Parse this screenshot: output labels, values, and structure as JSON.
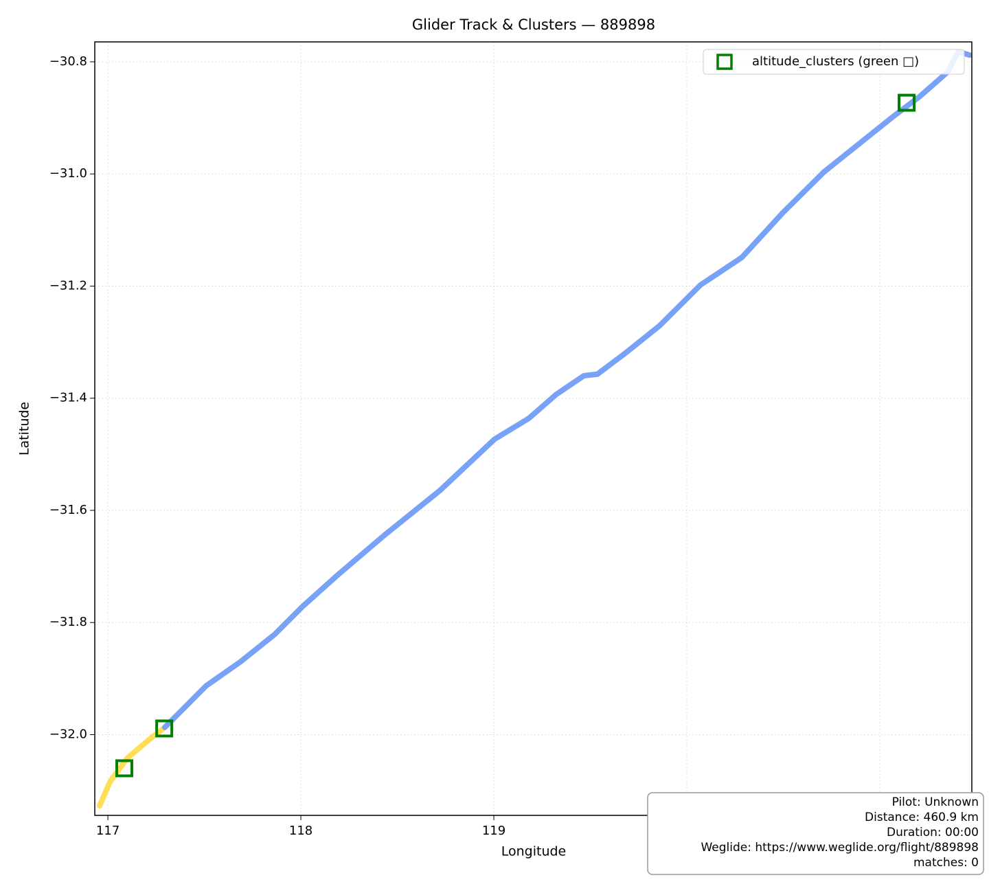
{
  "chart_data": {
    "type": "line",
    "title": "Glider Track & Clusters — 889898",
    "xlabel": "Longitude",
    "ylabel": "Latitude",
    "xlim": [
      116.932,
      121.477
    ],
    "ylim": [
      -32.144,
      -30.7645
    ],
    "xticks": [
      117,
      118,
      119,
      120,
      121
    ],
    "yticks": [
      {
        "value": -30.8,
        "label": "−30.8"
      },
      {
        "value": -31.0,
        "label": "−31.0"
      },
      {
        "value": -31.2,
        "label": "−31.2"
      },
      {
        "value": -31.4,
        "label": "−31.4"
      },
      {
        "value": -31.6,
        "label": "−31.6"
      },
      {
        "value": -31.8,
        "label": "−31.8"
      },
      {
        "value": -32.0,
        "label": "−32.0"
      }
    ],
    "grid": true,
    "legend": "upper right",
    "series": [
      {
        "color": "#ffdd55",
        "x": [
          116.957,
          117.011,
          117.1,
          117.206,
          117.295
        ],
        "values": [
          -32.127,
          -32.084,
          -32.042,
          -32.011,
          -31.987
        ]
      },
      {
        "color": "#77a2f7",
        "x": [
          117.295,
          117.402,
          117.509,
          117.687,
          117.865,
          118.007,
          118.185,
          118.434,
          118.719,
          119.004,
          119.181,
          119.324,
          119.466,
          119.537,
          119.68,
          119.858,
          120.071,
          120.285,
          120.498,
          120.712,
          120.89,
          121.068,
          121.21,
          121.352,
          121.406,
          121.466
        ],
        "values": [
          -31.987,
          -31.95,
          -31.913,
          -31.87,
          -31.821,
          -31.772,
          -31.717,
          -31.644,
          -31.565,
          -31.473,
          -31.436,
          -31.393,
          -31.36,
          -31.357,
          -31.32,
          -31.271,
          -31.198,
          -31.149,
          -31.069,
          -30.996,
          -30.947,
          -30.898,
          -30.861,
          -30.818,
          -30.782,
          -30.788
        ]
      },
      {
        "name": "altitude_clusters (green □)",
        "color": "green",
        "marker": "square",
        "x": [
          117.085,
          117.292,
          121.139
        ],
        "values": [
          -32.06,
          -31.989,
          -30.873
        ]
      }
    ],
    "annotations": [
      "Pilot: Unknown",
      "Distance: 460.9 km",
      "Duration: 00:00",
      "Weglide: https://www.weglide.org/flight/889898",
      "matches: 0"
    ]
  }
}
